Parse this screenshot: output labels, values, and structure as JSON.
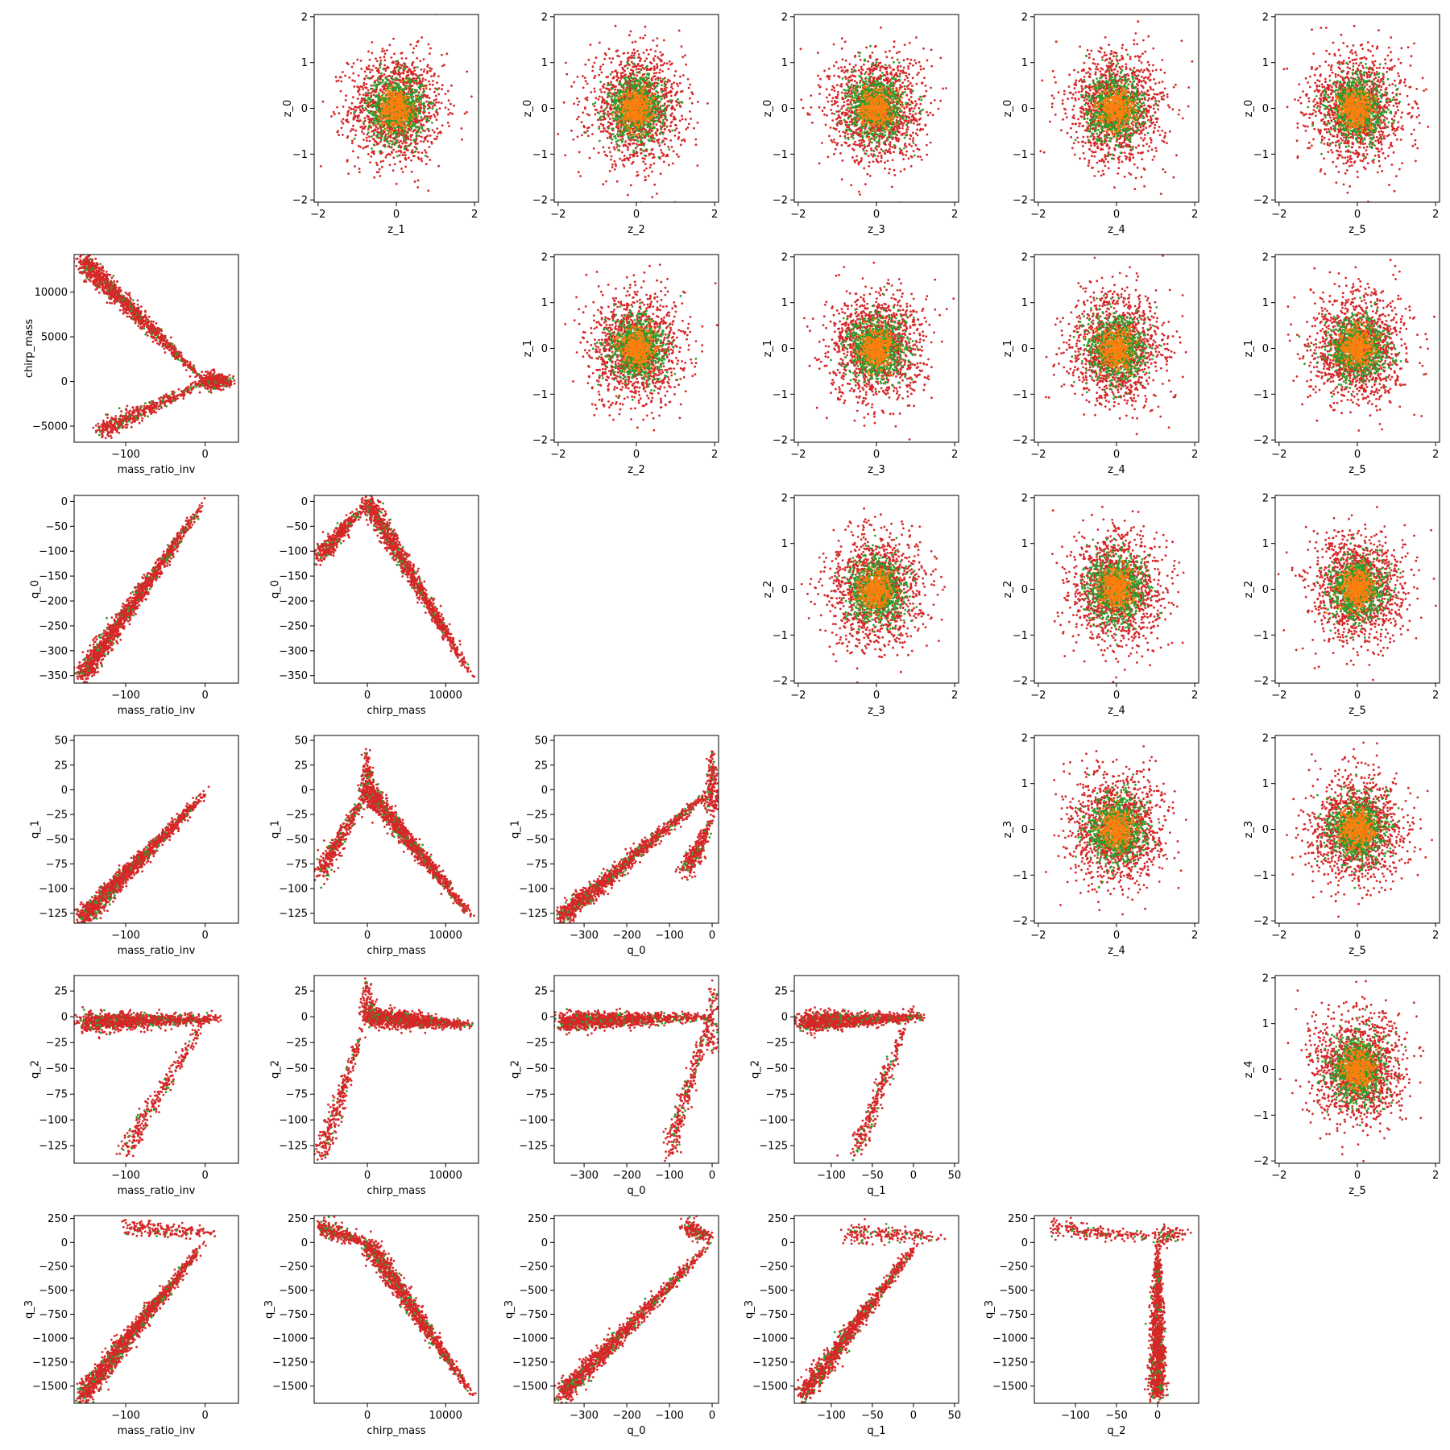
{
  "figure": {
    "variables": [
      "mass_ratio_inv",
      "chirp_mass",
      "q_0",
      "q_1",
      "q_2",
      "q_3",
      "z_0",
      "z_1",
      "z_2",
      "z_3",
      "z_4",
      "z_5"
    ],
    "series_colors": [
      "#d62728",
      "#2ca02c",
      "#ff7f0e"
    ]
  },
  "chart_data": [
    {
      "type": "scatter",
      "xlabel": "z_1",
      "ylabel": "z_0",
      "xticks": [
        -2,
        0,
        2
      ],
      "yticks": [
        -2,
        -1,
        0,
        1,
        2
      ],
      "xlim": [
        -2.1,
        2.1
      ],
      "ylim": [
        -2.05,
        2.05
      ],
      "shape": "blob",
      "spread": 0.6
    },
    {
      "type": "scatter",
      "xlabel": "z_2",
      "ylabel": "z_0",
      "xticks": [
        -2,
        0,
        2
      ],
      "yticks": [
        -2,
        -1,
        0,
        1,
        2
      ],
      "xlim": [
        -2.1,
        2.1
      ],
      "ylim": [
        -2.05,
        2.05
      ],
      "shape": "blob",
      "spread": 0.6
    },
    {
      "type": "scatter",
      "xlabel": "z_3",
      "ylabel": "z_0",
      "xticks": [
        -2,
        0,
        2
      ],
      "yticks": [
        -2,
        -1,
        0,
        1,
        2
      ],
      "xlim": [
        -2.1,
        2.1
      ],
      "ylim": [
        -2.05,
        2.05
      ],
      "shape": "blob",
      "spread": 0.6
    },
    {
      "type": "scatter",
      "xlabel": "z_4",
      "ylabel": "z_0",
      "xticks": [
        -2,
        0,
        2
      ],
      "yticks": [
        -2,
        -1,
        0,
        1,
        2
      ],
      "xlim": [
        -2.1,
        2.1
      ],
      "ylim": [
        -2.05,
        2.05
      ],
      "shape": "blob",
      "spread": 0.6
    },
    {
      "type": "scatter",
      "xlabel": "z_5",
      "ylabel": "z_0",
      "xticks": [
        -2,
        0,
        2
      ],
      "yticks": [
        -2,
        -1,
        0,
        1,
        2
      ],
      "xlim": [
        -2.1,
        2.1
      ],
      "ylim": [
        -2.05,
        2.05
      ],
      "shape": "blob",
      "spread": 0.6
    },
    {
      "type": "scatter",
      "xlabel": "mass_ratio_inv",
      "ylabel": "chirp_mass",
      "xticks": [
        -100,
        0
      ],
      "yticks": [
        -5000,
        0,
        5000,
        10000
      ],
      "xlim": [
        -165,
        42
      ],
      "ylim": [
        -6800,
        14200
      ],
      "shape": "lines",
      "segments": [
        [
          -155,
          13500,
          0,
          0,
          1200
        ],
        [
          -130,
          -5500,
          0,
          0,
          500
        ],
        [
          0,
          0,
          35,
          0,
          400
        ]
      ]
    },
    {
      "type": "scatter",
      "xlabel": "z_2",
      "ylabel": "z_1",
      "xticks": [
        -2,
        0,
        2
      ],
      "yticks": [
        -2,
        -1,
        0,
        1,
        2
      ],
      "xlim": [
        -2.1,
        2.1
      ],
      "ylim": [
        -2.05,
        2.05
      ],
      "shape": "blob",
      "spread": 0.6
    },
    {
      "type": "scatter",
      "xlabel": "z_3",
      "ylabel": "z_1",
      "xticks": [
        -2,
        0,
        2
      ],
      "yticks": [
        -2,
        -1,
        0,
        1,
        2
      ],
      "xlim": [
        -2.1,
        2.1
      ],
      "ylim": [
        -2.05,
        2.05
      ],
      "shape": "blob",
      "spread": 0.6
    },
    {
      "type": "scatter",
      "xlabel": "z_4",
      "ylabel": "z_1",
      "xticks": [
        -2,
        0,
        2
      ],
      "yticks": [
        -2,
        -1,
        0,
        1,
        2
      ],
      "xlim": [
        -2.1,
        2.1
      ],
      "ylim": [
        -2.05,
        2.05
      ],
      "shape": "blob",
      "spread": 0.6
    },
    {
      "type": "scatter",
      "xlabel": "z_5",
      "ylabel": "z_1",
      "xticks": [
        -2,
        0,
        2
      ],
      "yticks": [
        -2,
        -1,
        0,
        1,
        2
      ],
      "xlim": [
        -2.1,
        2.1
      ],
      "ylim": [
        -2.05,
        2.05
      ],
      "shape": "blob",
      "spread": 0.6
    },
    {
      "type": "scatter",
      "xlabel": "mass_ratio_inv",
      "ylabel": "q_0",
      "xticks": [
        -100,
        0
      ],
      "yticks": [
        -350,
        -300,
        -250,
        -200,
        -150,
        -100,
        -50,
        0
      ],
      "xlim": [
        -165,
        42
      ],
      "ylim": [
        -365,
        12
      ],
      "shape": "lines",
      "segments": [
        [
          -155,
          -350,
          0,
          0,
          1500
        ]
      ]
    },
    {
      "type": "scatter",
      "xlabel": "chirp_mass",
      "ylabel": "q_0",
      "xticks": [
        0,
        10000
      ],
      "yticks": [
        -350,
        -300,
        -250,
        -200,
        -150,
        -100,
        -50,
        0
      ],
      "xlim": [
        -6800,
        14200
      ],
      "ylim": [
        -365,
        12
      ],
      "shape": "lines",
      "segments": [
        [
          -6000,
          -110,
          0,
          0,
          400
        ],
        [
          0,
          0,
          13500,
          -355,
          1200
        ]
      ]
    },
    {
      "type": "scatter",
      "xlabel": "z_3",
      "ylabel": "z_2",
      "xticks": [
        -2,
        0,
        2
      ],
      "yticks": [
        -2,
        -1,
        0,
        1,
        2
      ],
      "xlim": [
        -2.1,
        2.1
      ],
      "ylim": [
        -2.05,
        2.05
      ],
      "shape": "blob",
      "spread": 0.6
    },
    {
      "type": "scatter",
      "xlabel": "z_4",
      "ylabel": "z_2",
      "xticks": [
        -2,
        0,
        2
      ],
      "yticks": [
        -2,
        -1,
        0,
        1,
        2
      ],
      "xlim": [
        -2.1,
        2.1
      ],
      "ylim": [
        -2.05,
        2.05
      ],
      "shape": "blob",
      "spread": 0.6
    },
    {
      "type": "scatter",
      "xlabel": "z_5",
      "ylabel": "z_2",
      "xticks": [
        -2,
        0,
        2
      ],
      "yticks": [
        -2,
        -1,
        0,
        1,
        2
      ],
      "xlim": [
        -2.1,
        2.1
      ],
      "ylim": [
        -2.05,
        2.05
      ],
      "shape": "blob",
      "spread": 0.6
    },
    {
      "type": "scatter",
      "xlabel": "mass_ratio_inv",
      "ylabel": "q_1",
      "xticks": [
        -100,
        0
      ],
      "yticks": [
        -125,
        -100,
        -75,
        -50,
        -25,
        0,
        25,
        50
      ],
      "xlim": [
        -165,
        42
      ],
      "ylim": [
        -135,
        55
      ],
      "shape": "lines",
      "segments": [
        [
          -155,
          -130,
          5,
          0,
          1400
        ]
      ]
    },
    {
      "type": "scatter",
      "xlabel": "chirp_mass",
      "ylabel": "q_1",
      "xticks": [
        0,
        10000
      ],
      "yticks": [
        -125,
        -100,
        -75,
        -50,
        -25,
        0,
        25,
        50
      ],
      "xlim": [
        -6800,
        14200
      ],
      "ylim": [
        -135,
        55
      ],
      "shape": "lines",
      "segments": [
        [
          -6000,
          -85,
          0,
          0,
          400
        ],
        [
          0,
          0,
          13500,
          -130,
          1200
        ],
        [
          0,
          -10,
          0,
          40,
          200
        ]
      ]
    },
    {
      "type": "scatter",
      "xlabel": "q_0",
      "ylabel": "q_1",
      "xticks": [
        -300,
        -200,
        -100,
        0
      ],
      "yticks": [
        -125,
        -100,
        -75,
        -50,
        -25,
        0,
        25,
        50
      ],
      "xlim": [
        -370,
        15
      ],
      "ylim": [
        -135,
        55
      ],
      "shape": "lines",
      "segments": [
        [
          -355,
          -130,
          0,
          0,
          1200
        ],
        [
          -60,
          -80,
          0,
          -30,
          300
        ],
        [
          0,
          -20,
          0,
          40,
          200
        ]
      ]
    },
    {
      "type": "scatter",
      "xlabel": "z_4",
      "ylabel": "z_3",
      "xticks": [
        -2,
        0,
        2
      ],
      "yticks": [
        -2,
        -1,
        0,
        1,
        2
      ],
      "xlim": [
        -2.1,
        2.1
      ],
      "ylim": [
        -2.05,
        2.05
      ],
      "shape": "blob",
      "spread": 0.6
    },
    {
      "type": "scatter",
      "xlabel": "z_5",
      "ylabel": "z_3",
      "xticks": [
        -2,
        0,
        2
      ],
      "yticks": [
        -2,
        -1,
        0,
        1,
        2
      ],
      "xlim": [
        -2.1,
        2.1
      ],
      "ylim": [
        -2.05,
        2.05
      ],
      "shape": "blob",
      "spread": 0.6
    },
    {
      "type": "scatter",
      "xlabel": "mass_ratio_inv",
      "ylabel": "q_2",
      "xticks": [
        -100,
        0
      ],
      "yticks": [
        -125,
        -100,
        -75,
        -50,
        -25,
        0,
        25
      ],
      "xlim": [
        -165,
        42
      ],
      "ylim": [
        -142,
        40
      ],
      "shape": "lines",
      "segments": [
        [
          -155,
          -5,
          20,
          -2,
          1200
        ],
        [
          -100,
          -130,
          10,
          10,
          300
        ]
      ]
    },
    {
      "type": "scatter",
      "xlabel": "chirp_mass",
      "ylabel": "q_2",
      "xticks": [
        0,
        10000
      ],
      "yticks": [
        -125,
        -100,
        -75,
        -50,
        -25,
        0,
        25
      ],
      "xlim": [
        -6800,
        14200
      ],
      "ylim": [
        -142,
        40
      ],
      "shape": "lines",
      "segments": [
        [
          0,
          0,
          13500,
          -8,
          1200
        ],
        [
          -6000,
          -135,
          0,
          0,
          300
        ],
        [
          0,
          0,
          0,
          35,
          100
        ]
      ]
    },
    {
      "type": "scatter",
      "xlabel": "q_0",
      "ylabel": "q_2",
      "xticks": [
        -300,
        -200,
        -100,
        0
      ],
      "yticks": [
        -125,
        -100,
        -75,
        -50,
        -25,
        0,
        25
      ],
      "xlim": [
        -370,
        15
      ],
      "ylim": [
        -142,
        40
      ],
      "shape": "lines",
      "segments": [
        [
          -355,
          -5,
          0,
          0,
          1200
        ],
        [
          -100,
          -130,
          0,
          10,
          300
        ],
        [
          0,
          -30,
          0,
          35,
          100
        ]
      ]
    },
    {
      "type": "scatter",
      "xlabel": "q_1",
      "ylabel": "q_2",
      "xticks": [
        -100,
        -50,
        0,
        50
      ],
      "yticks": [
        -125,
        -100,
        -75,
        -50,
        -25,
        0,
        25
      ],
      "xlim": [
        -145,
        55
      ],
      "ylim": [
        -142,
        40
      ],
      "shape": "lines",
      "segments": [
        [
          -135,
          -5,
          15,
          0,
          1200
        ],
        [
          -70,
          -130,
          0,
          10,
          300
        ]
      ]
    },
    {
      "type": "scatter",
      "xlabel": "z_5",
      "ylabel": "z_4",
      "xticks": [
        -2,
        0,
        2
      ],
      "yticks": [
        -2,
        -1,
        0,
        1,
        2
      ],
      "xlim": [
        -2.1,
        2.1
      ],
      "ylim": [
        -2.05,
        2.05
      ],
      "shape": "blob",
      "spread": 0.6
    },
    {
      "type": "scatter",
      "xlabel": "mass_ratio_inv",
      "ylabel": "q_3",
      "xticks": [
        -100,
        0
      ],
      "yticks": [
        -1500,
        -1250,
        -1000,
        -750,
        -500,
        -250,
        0,
        250
      ],
      "xlim": [
        -165,
        42
      ],
      "ylim": [
        -1680,
        280
      ],
      "shape": "lines",
      "segments": [
        [
          -155,
          -1600,
          0,
          0,
          1500
        ],
        [
          -100,
          150,
          20,
          100,
          200
        ]
      ]
    },
    {
      "type": "scatter",
      "xlabel": "chirp_mass",
      "ylabel": "q_3",
      "xticks": [
        0,
        10000
      ],
      "yticks": [
        -1500,
        -1250,
        -1000,
        -750,
        -500,
        -250,
        0,
        250
      ],
      "xlim": [
        -6800,
        14200
      ],
      "ylim": [
        -1680,
        280
      ],
      "shape": "lines",
      "segments": [
        [
          0,
          0,
          13500,
          -1600,
          1200
        ],
        [
          -6000,
          150,
          0,
          0,
          300
        ]
      ]
    },
    {
      "type": "scatter",
      "xlabel": "q_0",
      "ylabel": "q_3",
      "xticks": [
        -300,
        -200,
        -100,
        0
      ],
      "yticks": [
        -1500,
        -1250,
        -1000,
        -750,
        -500,
        -250,
        0,
        250
      ],
      "xlim": [
        -370,
        15
      ],
      "ylim": [
        -1680,
        280
      ],
      "shape": "lines",
      "segments": [
        [
          -355,
          -1600,
          0,
          0,
          1200
        ],
        [
          -60,
          150,
          0,
          50,
          200
        ]
      ]
    },
    {
      "type": "scatter",
      "xlabel": "q_1",
      "ylabel": "q_3",
      "xticks": [
        -100,
        -50,
        0,
        50
      ],
      "yticks": [
        -1500,
        -1250,
        -1000,
        -750,
        -500,
        -250,
        0,
        250
      ],
      "xlim": [
        -145,
        55
      ],
      "ylim": [
        -1680,
        280
      ],
      "shape": "lines",
      "segments": [
        [
          -135,
          -1600,
          5,
          0,
          1200
        ],
        [
          -80,
          100,
          40,
          50,
          200
        ]
      ]
    },
    {
      "type": "scatter",
      "xlabel": "q_2",
      "ylabel": "q_3",
      "xticks": [
        -100,
        -50,
        0
      ],
      "yticks": [
        -1500,
        -1250,
        -1000,
        -750,
        -500,
        -250,
        0,
        250
      ],
      "xlim": [
        -150,
        50
      ],
      "ylim": [
        -1680,
        280
      ],
      "shape": "lines",
      "segments": [
        [
          0,
          -1600,
          0,
          50,
          1200
        ],
        [
          -130,
          150,
          0,
          50,
          200
        ],
        [
          0,
          50,
          40,
          100,
          100
        ]
      ]
    }
  ]
}
